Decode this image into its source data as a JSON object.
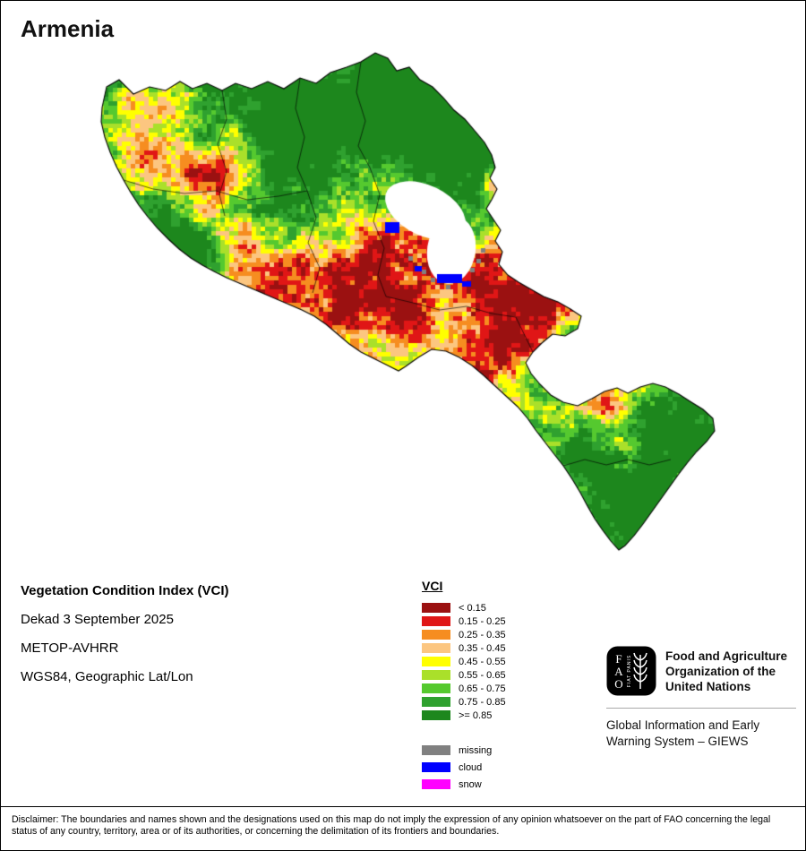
{
  "title": "Armenia",
  "info": {
    "heading": "Vegetation Condition Index (VCI)",
    "lines": [
      "Dekad 3 September 2025",
      "METOP-AVHRR",
      "WGS84, Geographic Lat/Lon"
    ]
  },
  "legend": {
    "title": "VCI",
    "classes": [
      {
        "label": "< 0.15",
        "color": "#9b1111"
      },
      {
        "label": "0.15 - 0.25",
        "color": "#e01616"
      },
      {
        "label": "0.25 - 0.35",
        "color": "#f68d20"
      },
      {
        "label": "0.35 - 0.45",
        "color": "#fcc680"
      },
      {
        "label": "0.45 - 0.55",
        "color": "#ffff00"
      },
      {
        "label": "0.55 - 0.65",
        "color": "#aae02a"
      },
      {
        "label": "0.65 - 0.75",
        "color": "#55c92f"
      },
      {
        "label": "0.75 - 0.85",
        "color": "#2fa12f"
      },
      {
        "label": ">= 0.85",
        "color": "#1d871d"
      }
    ],
    "special": [
      {
        "label": "missing",
        "color": "#808080"
      },
      {
        "label": "cloud",
        "color": "#0000ff"
      },
      {
        "label": "snow",
        "color": "#ff00ff"
      }
    ]
  },
  "branding": {
    "fao_logo_text": "FAO",
    "fao_motto": "FIAT PANIS",
    "org_name": "Food and Agriculture Organization of the United Nations",
    "giews_name": "Global Information and Early Warning System – GIEWS"
  },
  "disclaimer": "Disclaimer: The boundaries and names shown and the designations used on this map do not imply the expression of any opinion whatsoever on the part of FAO concerning the legal status of any country, territory, area or of its authorities, or concerning the delimitation of its frontiers and boundaries."
}
